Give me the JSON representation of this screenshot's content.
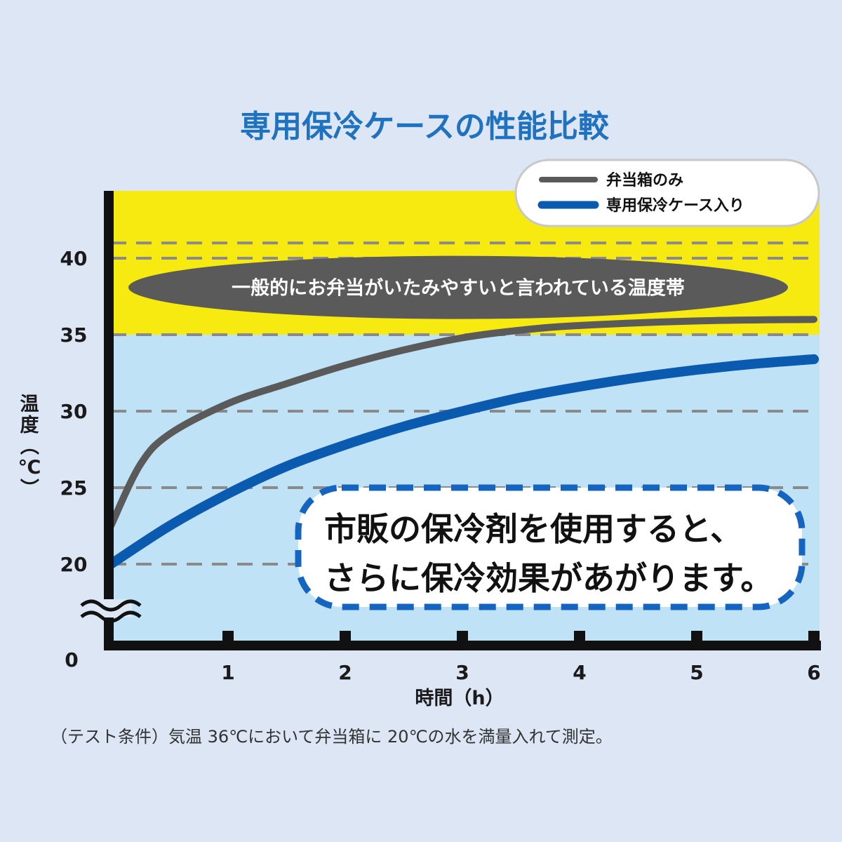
{
  "colors": {
    "background": "#dce6f5",
    "danger_band": "#f7ea10",
    "safe_band": "#bfe2f6",
    "gridline": "#8a8a8a",
    "axis": "#111111",
    "title": "#1f72c0",
    "series_box_only": "#5a5a5a",
    "series_cooler": "#0a5bb0",
    "band_label_bg": "#5a5a5a",
    "callout_border": "#1565c0"
  },
  "chart_data": {
    "type": "line",
    "title": "専用保冷ケースの性能比較",
    "xlabel": "時間（h）",
    "ylabel": "温度（℃）",
    "ylabel_chars": [
      "温",
      "度",
      "（",
      "℃",
      "）"
    ],
    "xlim": [
      0,
      6
    ],
    "ylim": [
      0,
      45
    ],
    "x_ticks": [
      1,
      2,
      3,
      4,
      5,
      6
    ],
    "y_ticks": [
      20,
      25,
      30,
      35,
      40
    ],
    "origin_label": "0",
    "axis_break": true,
    "grid": "dashed-horizontal",
    "legend": "top-right",
    "series": [
      {
        "name": "弁当箱のみ",
        "x": [
          0,
          0.25,
          0.5,
          1,
          1.5,
          2,
          2.5,
          3,
          3.5,
          4,
          5,
          6
        ],
        "y": [
          22.5,
          26.5,
          28.5,
          30.5,
          31.8,
          33.0,
          34.0,
          34.8,
          35.3,
          35.6,
          35.9,
          36.0
        ]
      },
      {
        "name": "専用保冷ケース入り",
        "x": [
          0,
          0.5,
          1,
          1.5,
          2,
          2.5,
          3,
          3.5,
          4,
          4.5,
          5,
          5.5,
          6
        ],
        "y": [
          20.0,
          22.5,
          24.6,
          26.4,
          27.8,
          29.0,
          30.0,
          30.9,
          31.6,
          32.2,
          32.7,
          33.1,
          33.4
        ]
      }
    ],
    "bands": [
      {
        "from": 35,
        "to": 41,
        "label": "一般的にお弁当がいたみやすいと言われている温度帯"
      }
    ],
    "annotation_lines": [
      "市販の保冷剤を使用すると、",
      "さらに保冷効果があがります。"
    ],
    "footnote": "（テスト条件）気温 36℃において弁当箱に 20℃の水を満量入れて測定。"
  }
}
